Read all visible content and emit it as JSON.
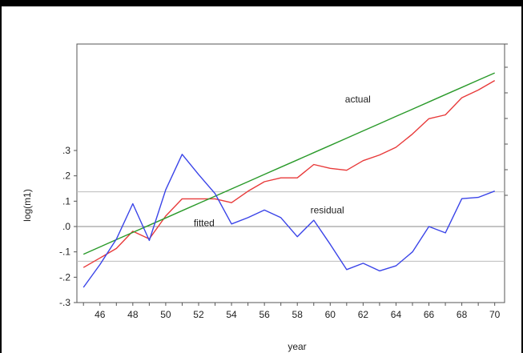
{
  "chart_data": {
    "type": "line",
    "title": "",
    "xlabel": "year",
    "ylabel": "log(m1)",
    "xlim": [
      44.6,
      70.6
    ],
    "x_ticks": [
      46,
      48,
      50,
      52,
      54,
      56,
      58,
      60,
      62,
      64,
      66,
      68,
      70
    ],
    "x_tick_labels": [
      "46",
      "48",
      "50",
      "52",
      "54",
      "56",
      "58",
      "60",
      "62",
      "64",
      "66",
      "68",
      "70"
    ],
    "left_axis": {
      "ylim": [
        -0.3,
        0.3
      ],
      "ticks": [
        -0.3,
        -0.2,
        -0.1,
        0.0,
        0.1,
        0.2,
        0.3
      ],
      "tick_labels": [
        "-.3",
        "-.2",
        "-.1",
        ".0",
        ".1",
        ".2",
        ".3"
      ]
    },
    "right_axis": {
      "tick_count": 7,
      "tick_labels": []
    },
    "grid": false,
    "reference_lines": [
      {
        "value": 0.0,
        "color": "#888888",
        "style": "solid"
      },
      {
        "value": 0.137,
        "color": "#bbbbbb",
        "style": "solid"
      },
      {
        "value": -0.137,
        "color": "#bbbbbb",
        "style": "solid"
      }
    ],
    "x": [
      45,
      46,
      47,
      48,
      49,
      50,
      51,
      52,
      53,
      54,
      55,
      56,
      57,
      58,
      59,
      60,
      61,
      62,
      63,
      64,
      65,
      66,
      67,
      68,
      69,
      70
    ],
    "series": [
      {
        "key": "actual",
        "color": "#e83a3a",
        "axis": "right",
        "values": [
          1.0,
          1.5,
          2.0,
          2.9,
          2.5,
          3.7,
          4.6,
          4.6,
          4.6,
          4.4,
          5.0,
          5.5,
          5.7,
          5.7,
          6.4,
          6.2,
          6.1,
          6.6,
          6.9,
          7.3,
          8.0,
          8.8,
          9.0,
          9.9,
          10.3,
          10.8
        ]
      },
      {
        "key": "fitted",
        "color": "#2a9a2a",
        "axis": "right",
        "values": [
          1.7,
          2.08,
          2.46,
          2.84,
          3.22,
          3.6,
          3.98,
          4.36,
          4.74,
          5.12,
          5.5,
          5.88,
          6.26,
          6.64,
          7.02,
          7.4,
          7.78,
          8.16,
          8.54,
          8.92,
          9.3,
          9.68,
          10.06,
          10.44,
          10.82,
          11.2
        ]
      },
      {
        "key": "residual",
        "color": "#3a44e8",
        "axis": "left",
        "values": [
          -0.24,
          -0.15,
          -0.05,
          0.09,
          -0.055,
          0.145,
          0.285,
          0.205,
          0.13,
          0.01,
          0.035,
          0.065,
          0.035,
          -0.04,
          0.025,
          -0.07,
          -0.17,
          -0.145,
          -0.175,
          -0.155,
          -0.1,
          0.0,
          -0.025,
          0.11,
          0.115,
          0.14
        ]
      }
    ],
    "annotations": [
      {
        "text": "actual",
        "x": 60.9,
        "y_right": 9.65
      },
      {
        "text": "fitted",
        "x": 51.7,
        "y_right": 3.18
      },
      {
        "text": "residual",
        "x": 58.8,
        "y_left": 0.052
      }
    ]
  }
}
